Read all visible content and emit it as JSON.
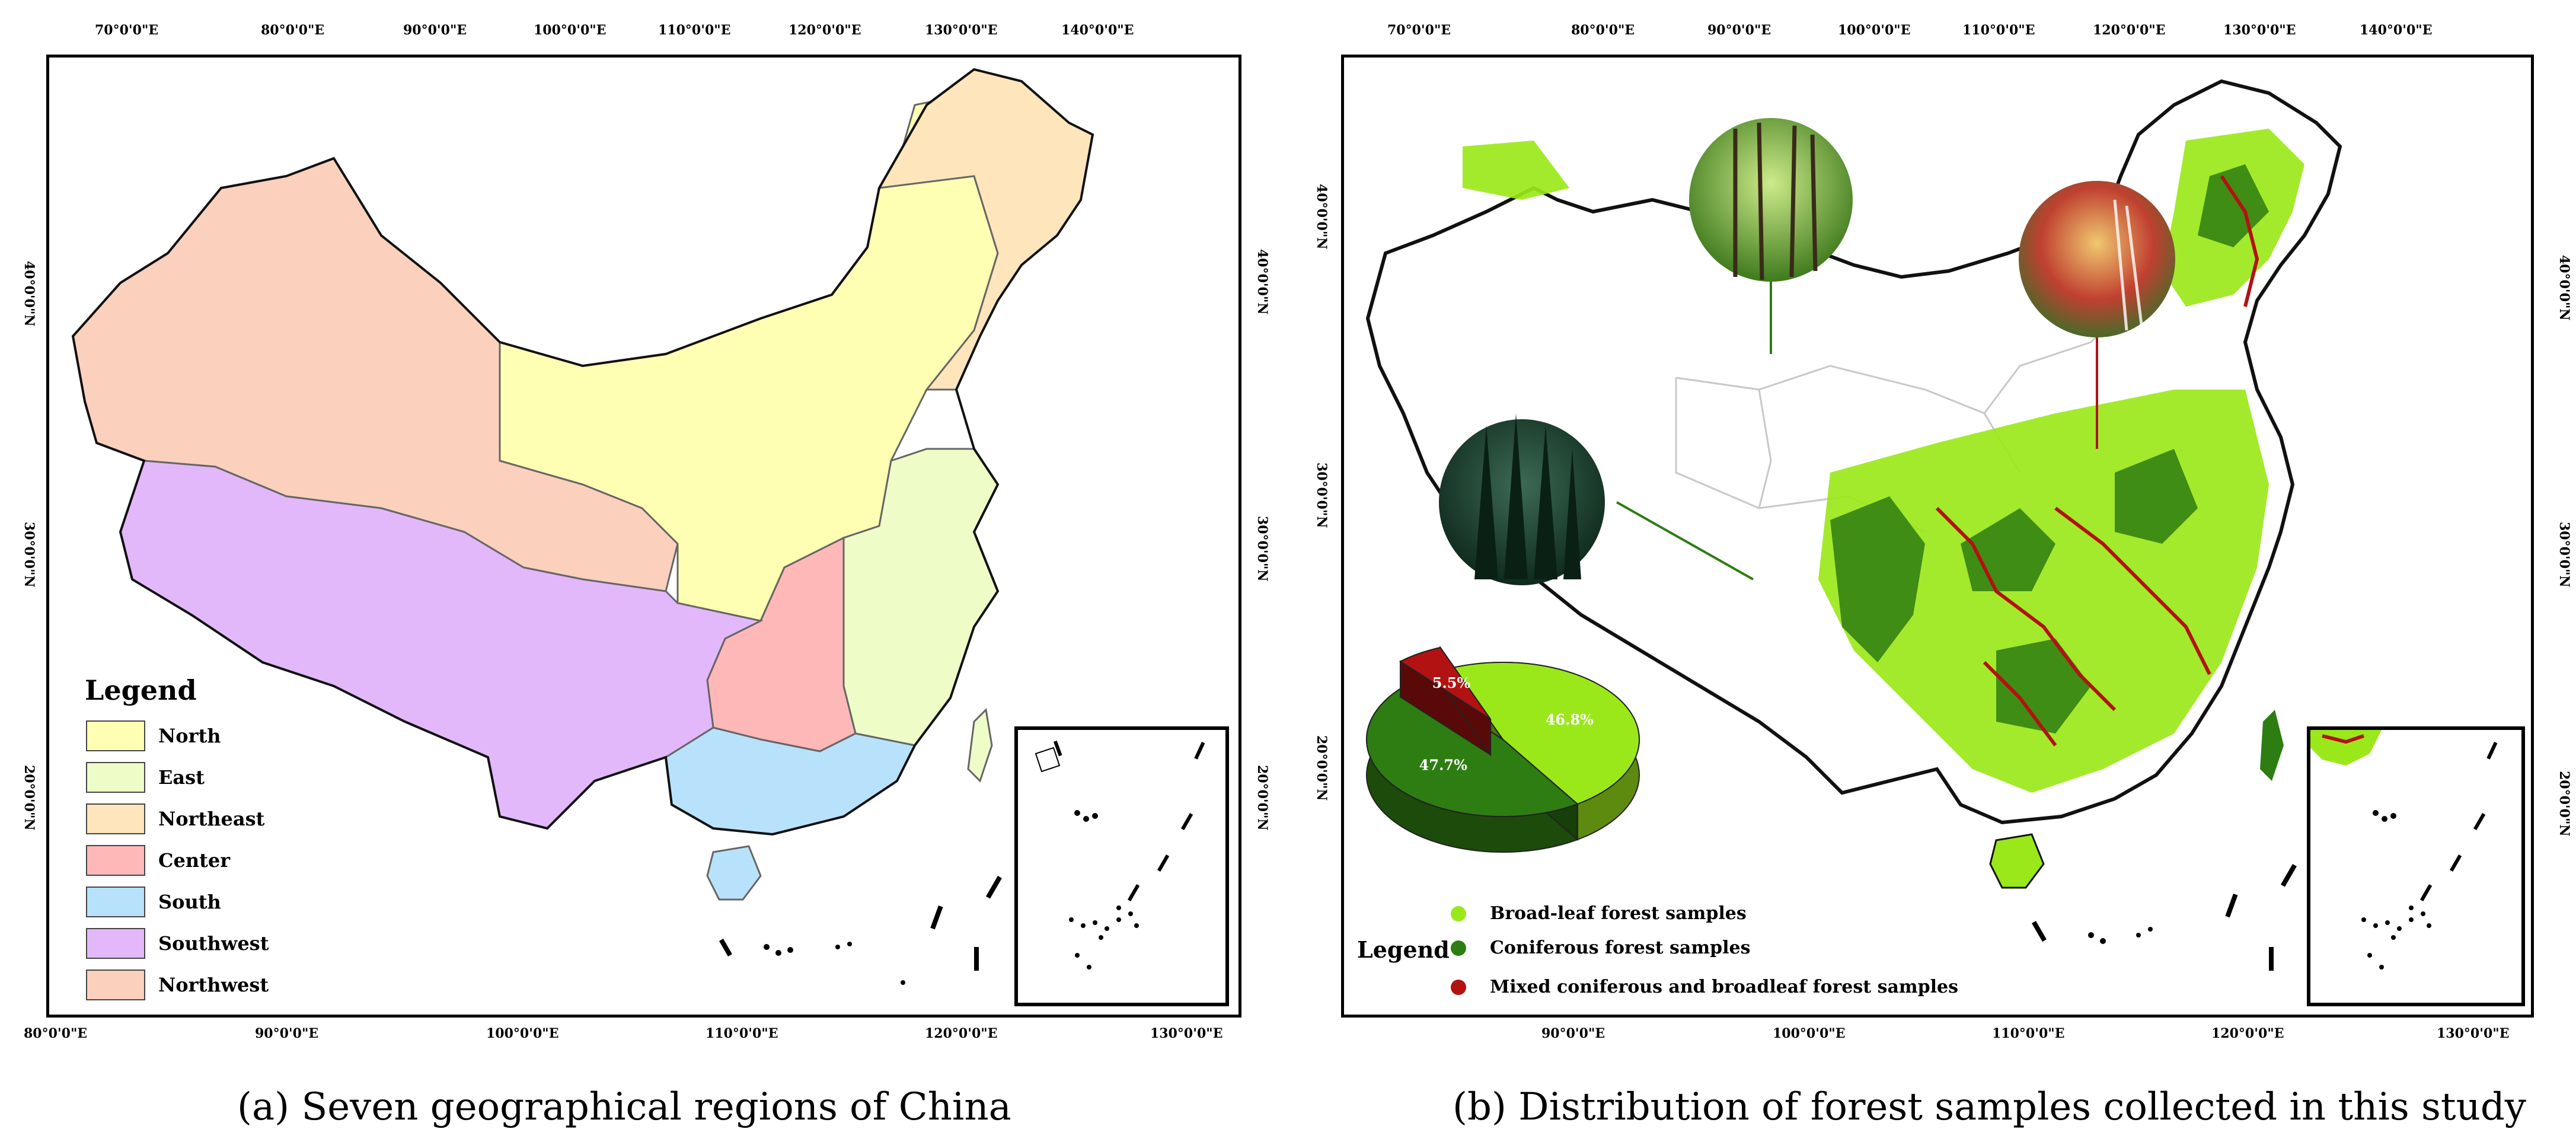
{
  "panel_a": {
    "caption": "(a)  Seven geographical regions of China",
    "top_ticks": [
      "70°0'0\"E",
      "80°0'0\"E",
      "90°0'0\"E",
      "100°0'0\"E",
      "110°0'0\"E",
      "120°0'0\"E",
      "130°0'0\"E",
      "140°0'0\"E"
    ],
    "bottom_ticks": [
      "80°0'0\"E",
      "90°0'0\"E",
      "100°0'0\"E",
      "110°0'0\"E",
      "120°0'0\"E",
      "130°0'0\"E"
    ],
    "left_ticks": [
      "40°0'0\"N",
      "30°0'0\"N",
      "20°0'0\"N"
    ],
    "right_ticks": [
      "40°0'0\"N",
      "30°0'0\"N",
      "20°0'0\"N"
    ],
    "legend": {
      "title": "Legend",
      "items": [
        {
          "label": "North",
          "color": "#ffffb3"
        },
        {
          "label": "East",
          "color": "#eefcc8"
        },
        {
          "label": "Northeast",
          "color": "#ffe5bc"
        },
        {
          "label": "Center",
          "color": "#ffb8b8"
        },
        {
          "label": "South",
          "color": "#b8e2fb"
        },
        {
          "label": "Southwest",
          "color": "#e2b8fb"
        },
        {
          "label": "Northwest",
          "color": "#fbd0bd"
        }
      ]
    }
  },
  "panel_b": {
    "caption": "(b)  Distribution of forest samples collected in this study",
    "top_ticks": [
      "70°0'0\"E",
      "80°0'0\"E",
      "90°0'0\"E",
      "100°0'0\"E",
      "110°0'0\"E",
      "120°0'0\"E",
      "130°0'0\"E",
      "140°0'0\"E"
    ],
    "bottom_ticks": [
      "90°0'0\"E",
      "100°0'0\"E",
      "110°0'0\"E",
      "120°0'0\"E",
      "130°0'0\"E"
    ],
    "left_ticks": [
      "40°0'0\"N",
      "30°0'0\"N",
      "20°0'0\"N"
    ],
    "right_ticks": [
      "40°0'0\"N",
      "30°0'0\"N",
      "20°0'0\"N"
    ],
    "legend": {
      "title": "Legend",
      "items": [
        {
          "label": "Broad-leaf forest samples",
          "color": "#9be81a"
        },
        {
          "label": "Coniferous forest samples",
          "color": "#2e7d12"
        },
        {
          "label": "Mixed coniferous and broadleaf forest samples",
          "color": "#b31212"
        }
      ]
    },
    "pie": {
      "slices": [
        {
          "label": "46.8%",
          "value": 46.8,
          "color": "#9be81a"
        },
        {
          "label": "47.7%",
          "value": 47.7,
          "color": "#2e7d12"
        },
        {
          "label": "5.5%",
          "value": 5.5,
          "color": "#b31212"
        }
      ]
    }
  }
}
